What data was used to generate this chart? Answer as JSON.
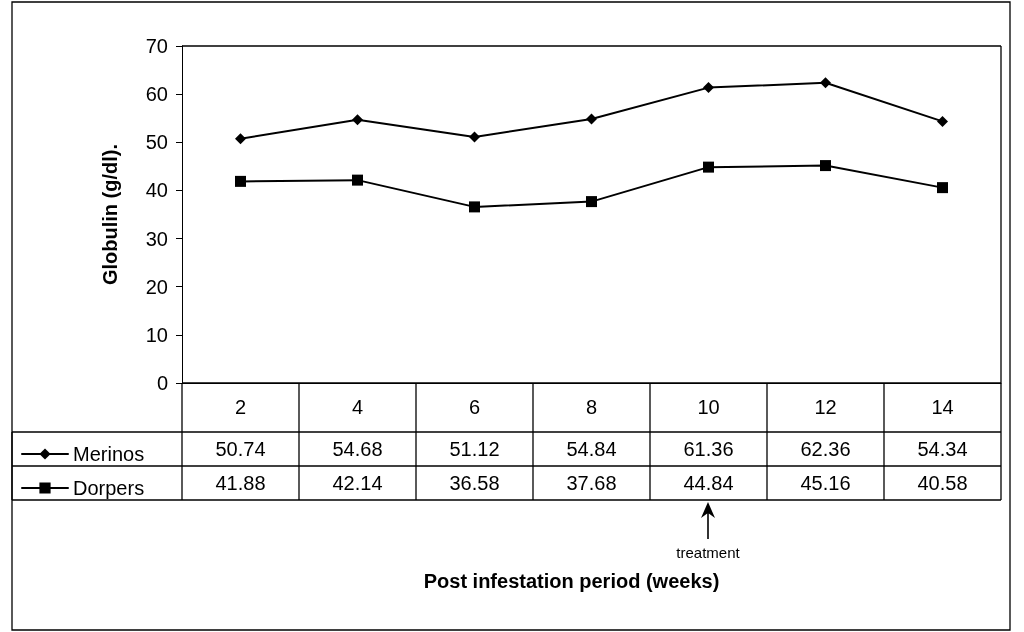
{
  "chart_data": {
    "type": "line",
    "ylabel": "Globulin (g/dl).",
    "categories": [
      "2",
      "4",
      "6",
      "8",
      "10",
      "12",
      "14"
    ],
    "series": [
      {
        "name": "Merinos",
        "color": "#000000",
        "marker": "diamond",
        "values": [
          50.74,
          54.68,
          51.12,
          54.84,
          61.36,
          62.36,
          54.34
        ]
      },
      {
        "name": "Dorpers",
        "color": "#000000",
        "marker": "square",
        "values": [
          41.88,
          42.14,
          36.58,
          37.68,
          44.84,
          45.16,
          40.58
        ]
      }
    ],
    "ylim": [
      0,
      70
    ],
    "yticks": [
      0,
      10,
      20,
      30,
      40,
      50,
      60,
      70
    ],
    "grid": false,
    "legend": "bottom left",
    "data_labels": true,
    "line_style": "solid",
    "annotations": [
      "treatment",
      "Post infestation period (weeks)"
    ]
  }
}
